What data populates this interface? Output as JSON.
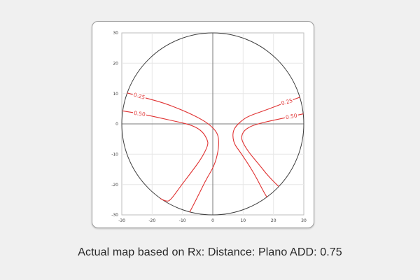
{
  "caption": "Actual map based on Rx: Distance: Plano ADD: 0.75",
  "colors": {
    "page_bg": "#f0f0f0",
    "panel_bg": "#ffffff",
    "panel_border": "#9e9e9e",
    "frame": "#bdbdbd",
    "grid": "#e7e7e7",
    "axis": "#7a7a7a",
    "circle": "#3d3d3d",
    "contour": "#e03232",
    "tick_text": "#3a3a3a",
    "caption_text": "#262626"
  },
  "chart_data": {
    "type": "contour",
    "title": "",
    "xlabel": "",
    "ylabel": "",
    "xlim": [
      -30,
      30
    ],
    "ylim": [
      -30,
      30
    ],
    "xticks": [
      -30,
      -20,
      -10,
      0,
      10,
      20,
      30
    ],
    "yticks": [
      -30,
      -20,
      -10,
      0,
      10,
      20,
      30
    ],
    "grid": true,
    "legend": "none",
    "lens_circle": {
      "cx": 0,
      "cy": 0,
      "r": 30
    },
    "series": [
      {
        "name": "contour-0.25-left",
        "level": 0.25,
        "points": [
          [
            -28.2,
            10.2
          ],
          [
            -23.5,
            8.9
          ],
          [
            -16.0,
            6.9
          ],
          [
            -9.0,
            4.1
          ],
          [
            -4.2,
            1.8
          ],
          [
            -1.1,
            -0.2
          ],
          [
            1.3,
            -2.6
          ],
          [
            2.0,
            -5.0
          ],
          [
            1.8,
            -9.0
          ],
          [
            0.5,
            -13.8
          ],
          [
            -2.3,
            -18.5
          ],
          [
            -4.6,
            -23.2
          ],
          [
            -7.0,
            -27.9
          ],
          [
            -7.6,
            -29.0
          ]
        ],
        "label": {
          "text": "0.25",
          "x": -24.4,
          "y": 9.2,
          "rotation_deg": 15
        }
      },
      {
        "name": "contour-0.50-left",
        "level": 0.5,
        "points": [
          [
            -29.7,
            4.3
          ],
          [
            -24.0,
            3.4
          ],
          [
            -18.3,
            2.2
          ],
          [
            -11.2,
            0.6
          ],
          [
            -6.6,
            -0.5
          ],
          [
            -3.4,
            -2.5
          ],
          [
            -1.8,
            -5.2
          ],
          [
            -1.5,
            -7.0
          ],
          [
            -3.8,
            -11.5
          ],
          [
            -7.3,
            -16.2
          ],
          [
            -10.8,
            -20.8
          ],
          [
            -13.8,
            -25.0
          ],
          [
            -15.3,
            -25.7
          ],
          [
            -17.3,
            -24.6
          ]
        ],
        "label": {
          "text": "0.50",
          "x": -24.2,
          "y": 3.4,
          "rotation_deg": 8
        }
      },
      {
        "name": "contour-0.25-right",
        "level": 0.25,
        "points": [
          [
            28.7,
            8.8
          ],
          [
            24.6,
            7.3
          ],
          [
            17.3,
            4.5
          ],
          [
            11.8,
            2.6
          ],
          [
            9.4,
            1.0
          ],
          [
            7.5,
            -0.9
          ],
          [
            6.7,
            -2.5
          ],
          [
            6.6,
            -4.6
          ],
          [
            7.2,
            -6.8
          ],
          [
            8.9,
            -9.1
          ],
          [
            12.0,
            -13.7
          ],
          [
            14.3,
            -17.6
          ],
          [
            16.7,
            -22.3
          ],
          [
            17.8,
            -24.1
          ]
        ],
        "label": {
          "text": "0.25",
          "x": 24.6,
          "y": 7.3,
          "rotation_deg": -16
        }
      },
      {
        "name": "contour-0.50-right",
        "level": 0.5,
        "points": [
          [
            29.8,
            3.3
          ],
          [
            26.0,
            2.5
          ],
          [
            18.0,
            0.8
          ],
          [
            13.0,
            -0.5
          ],
          [
            10.5,
            -2.0
          ],
          [
            9.6,
            -3.5
          ],
          [
            9.4,
            -5.2
          ],
          [
            11.6,
            -9.1
          ],
          [
            15.5,
            -13.7
          ],
          [
            18.6,
            -17.6
          ],
          [
            21.7,
            -20.6
          ]
        ],
        "label": {
          "text": "0.50",
          "x": 26.0,
          "y": 2.5,
          "rotation_deg": -10
        }
      }
    ]
  }
}
